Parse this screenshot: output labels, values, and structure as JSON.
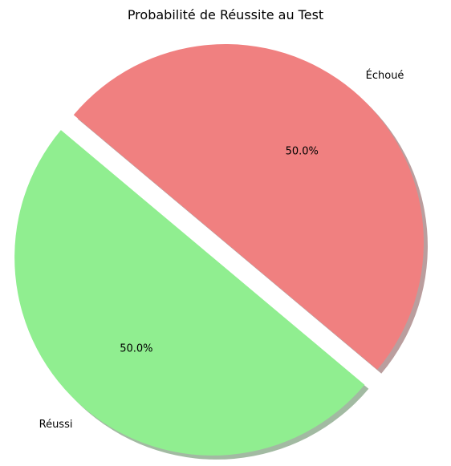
{
  "chart_data": {
    "type": "pie",
    "title": "Probabilité de Réussite au Test",
    "slices": [
      {
        "label": "Réussi",
        "value": 0.5,
        "percent_label": "50.0%",
        "color": "#90ee90",
        "exploded": true
      },
      {
        "label": "Échoué",
        "value": 0.5,
        "percent_label": "50.0%",
        "color": "#f08080",
        "exploded": false
      }
    ],
    "start_angle_deg": 140,
    "shadow": true,
    "legend": "none"
  }
}
